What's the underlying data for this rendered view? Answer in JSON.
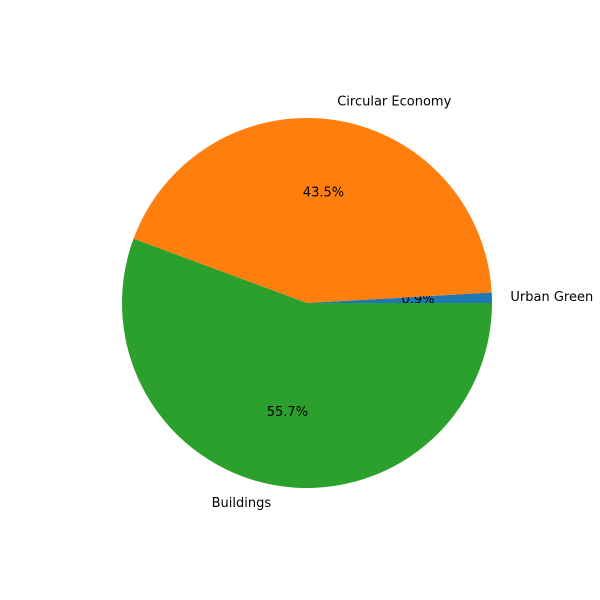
{
  "chart_data": {
    "type": "pie",
    "categories": [
      "Urban Green",
      "Circular Economy",
      "Buildings"
    ],
    "values": [
      0.9,
      43.5,
      55.7
    ],
    "value_labels": [
      "0.9%",
      "43.5%",
      "55.7%"
    ],
    "colors": [
      "#1f77b4",
      "#ff7f0e",
      "#2ca02c"
    ]
  }
}
